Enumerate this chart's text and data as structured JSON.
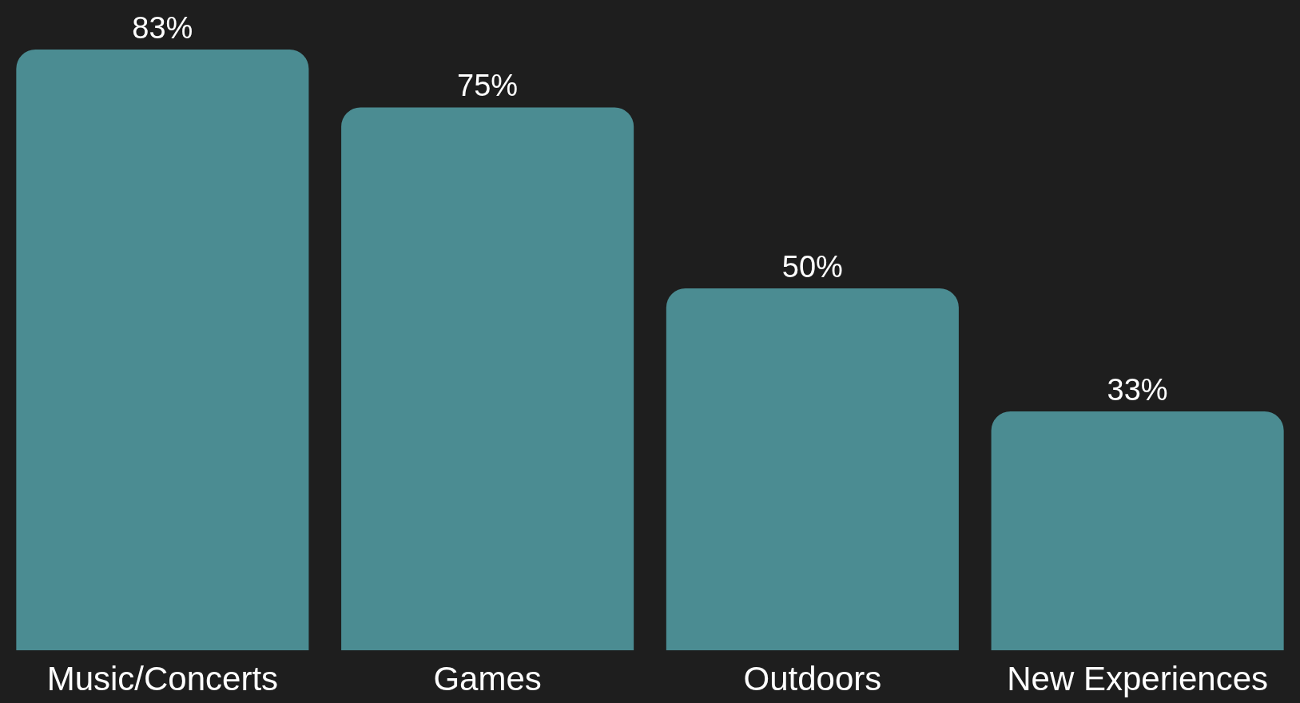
{
  "chart_data": {
    "type": "bar",
    "categories": [
      "Music/Concerts",
      "Games",
      "Outdoors",
      "New Experiences"
    ],
    "values": [
      83,
      75,
      50,
      33
    ],
    "value_labels": [
      "83%",
      "75%",
      "50%",
      "33%"
    ],
    "color": "#4b8c92"
  }
}
